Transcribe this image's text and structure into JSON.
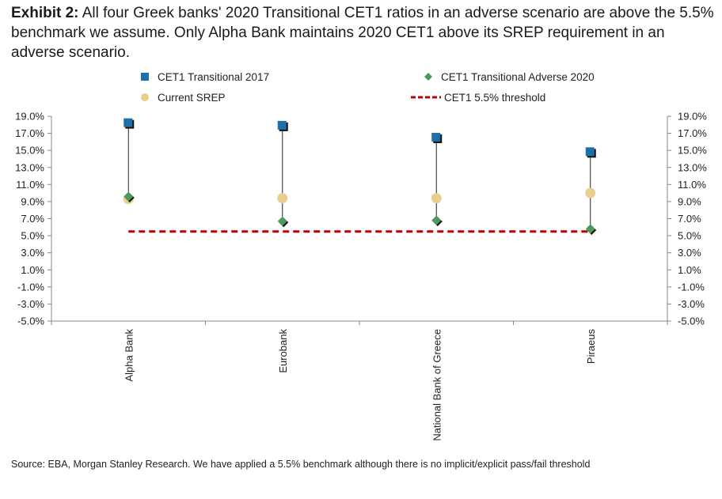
{
  "exhibit_label": "Exhibit 2:",
  "exhibit_title": "All four Greek banks' 2020 Transitional CET1 ratios in an adverse scenario are above the 5.5% benchmark we assume. Only Alpha Bank maintains 2020 CET1 above its SREP requirement in an adverse scenario.",
  "source": "Source: EBA, Morgan Stanley Research. We have applied a 5.5% benchmark although there is no implicit/explicit pass/fail threshold",
  "colors": {
    "cet1_2017": "#1f6fa8",
    "adverse_2020": "#4a9a5a",
    "srep": "#e8cf8e",
    "threshold": "#c00000"
  },
  "chart_data": {
    "type": "scatter",
    "categories": [
      "Alpha Bank",
      "Eurobank",
      "National Bank of Greece",
      "Piraeus"
    ],
    "series": [
      {
        "name": "CET1 Transitional 2017",
        "marker": "square",
        "values": [
          18.2,
          17.9,
          16.5,
          14.8
        ]
      },
      {
        "name": "CET1 Transitional Adverse 2020",
        "marker": "diamond",
        "values": [
          9.6,
          6.7,
          6.8,
          5.8
        ]
      },
      {
        "name": "Current SREP",
        "marker": "circle",
        "values": [
          9.3,
          9.4,
          9.4,
          10.0
        ]
      },
      {
        "name": "CET1 5.5% threshold",
        "marker": "dashed-line",
        "values": [
          5.5,
          5.5,
          5.5,
          5.5
        ]
      }
    ],
    "yticks": [
      "19.0%",
      "17.0%",
      "15.0%",
      "13.0%",
      "11.0%",
      "9.0%",
      "7.0%",
      "5.0%",
      "3.0%",
      "1.0%",
      "-1.0%",
      "-3.0%",
      "-5.0%"
    ],
    "ylim": [
      -5,
      19
    ],
    "legend_position": "top",
    "grid": false,
    "secondary_y_axis": true
  }
}
